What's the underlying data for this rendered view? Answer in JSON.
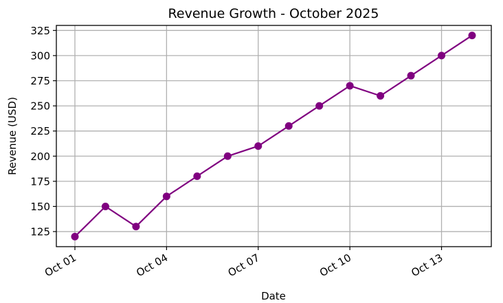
{
  "chart_data": {
    "type": "line",
    "title": "Revenue Growth - October 2025",
    "xlabel": "Date",
    "ylabel": "Revenue (USD)",
    "x": [
      "Oct 01",
      "Oct 02",
      "Oct 03",
      "Oct 04",
      "Oct 05",
      "Oct 06",
      "Oct 07",
      "Oct 08",
      "Oct 09",
      "Oct 10",
      "Oct 11",
      "Oct 12",
      "Oct 13",
      "Oct 14"
    ],
    "x_tick_labels": [
      "Oct 01",
      "Oct 04",
      "Oct 07",
      "Oct 10",
      "Oct 13"
    ],
    "series": [
      {
        "values": [
          120,
          150,
          130,
          160,
          180,
          200,
          210,
          230,
          250,
          270,
          260,
          280,
          300,
          320
        ],
        "color": "#800080",
        "marker": "circle"
      }
    ],
    "ylim": [
      110,
      330
    ],
    "y_ticks": [
      125,
      150,
      175,
      200,
      225,
      250,
      275,
      300,
      325
    ],
    "grid": true
  }
}
